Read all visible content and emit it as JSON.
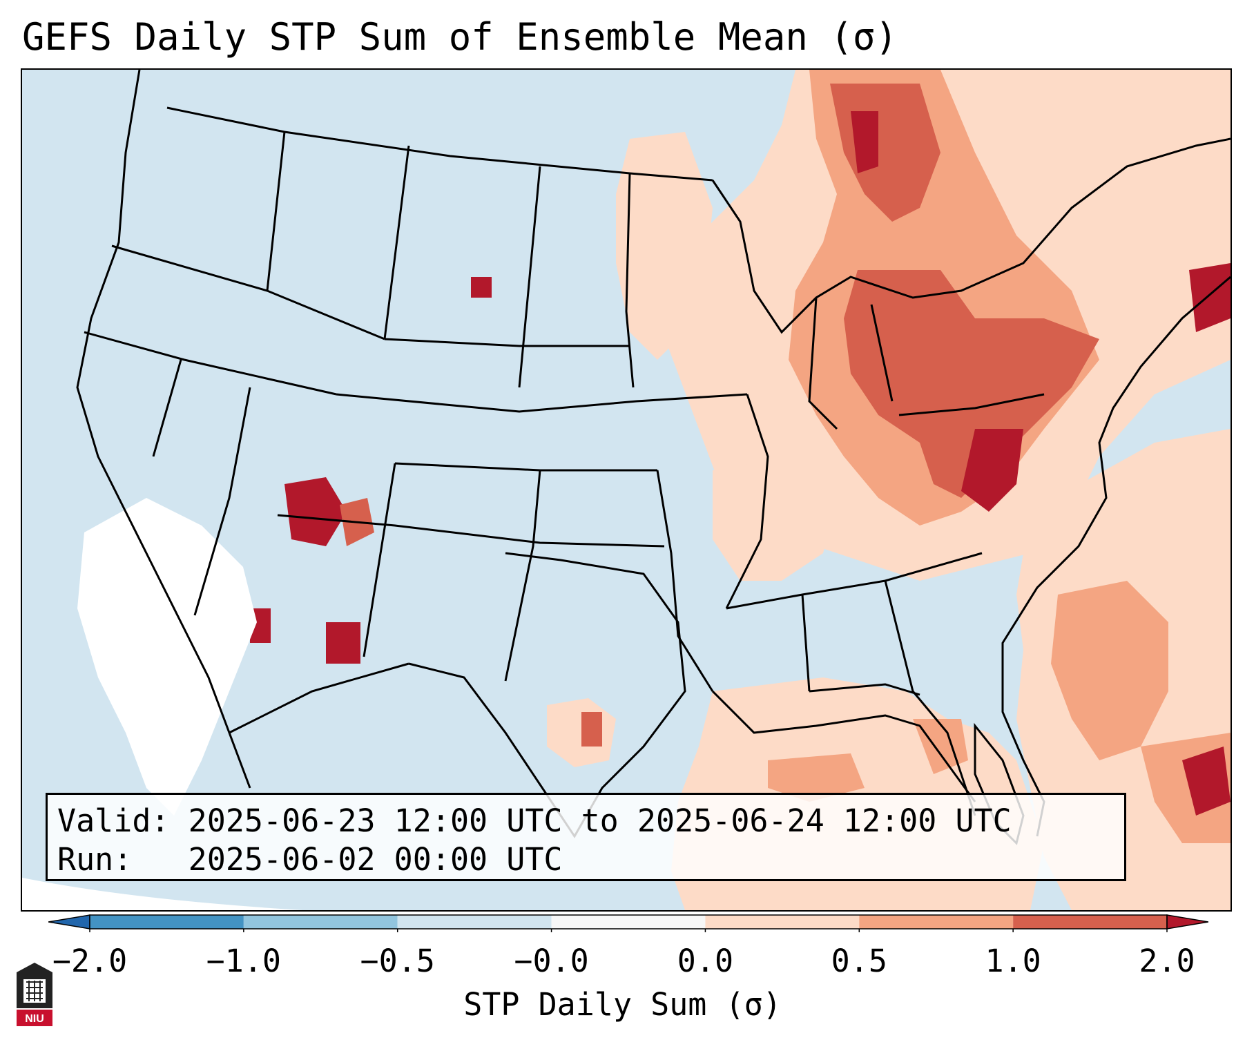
{
  "title": "GEFS Daily STP Sum of Ensemble Mean (σ)",
  "info": {
    "valid_label": "Valid:",
    "valid_text": "2025-06-23 12:00 UTC to 2025-06-24 12:00 UTC",
    "run_label": "Run:",
    "run_text": "2025-06-02 00:00 UTC"
  },
  "colorbar": {
    "label": "STP Daily Sum (σ)",
    "ticks": [
      "−2.0",
      "−1.0",
      "−0.5",
      "−0.0",
      "0.0",
      "0.5",
      "1.0",
      "2.0"
    ],
    "bins": [
      {
        "range": "< -2.0",
        "color": "#2166ac"
      },
      {
        "range": "-2.0 to -1.0",
        "color": "#4393c3"
      },
      {
        "range": "-1.0 to -0.5",
        "color": "#92c5de"
      },
      {
        "range": "-0.5 to -0.0",
        "color": "#d1e5f0"
      },
      {
        "range": "-0.0 to 0.0",
        "color": "#f7f7f7"
      },
      {
        "range": "0.0 to 0.5",
        "color": "#fddbc7"
      },
      {
        "range": "0.5 to 1.0",
        "color": "#f4a582"
      },
      {
        "range": "1.0 to 2.0",
        "color": "#d6604d"
      },
      {
        "range": "> 2.0",
        "color": "#b2182b"
      }
    ]
  },
  "logo": {
    "text": "NIU"
  }
}
